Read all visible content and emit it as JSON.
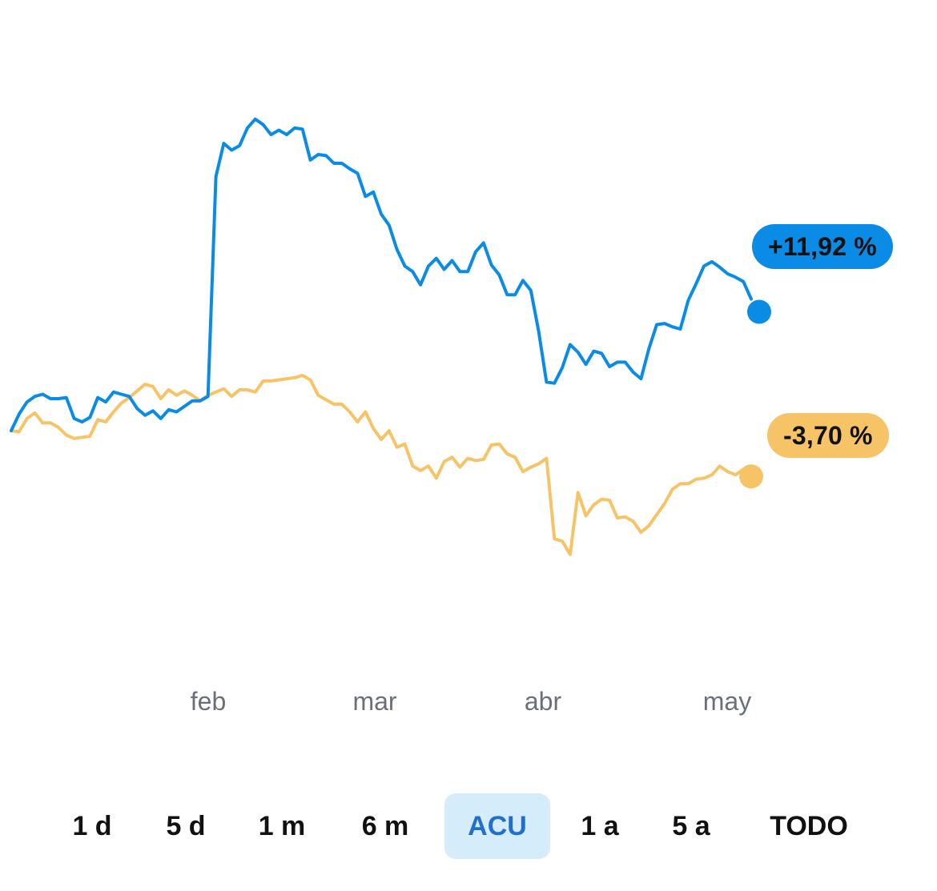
{
  "chart_data": {
    "type": "line",
    "x_ticks": [
      "feb",
      "mar",
      "abr",
      "may"
    ],
    "y_unit": "%",
    "grid": false,
    "series": [
      {
        "color": "#0a8be6",
        "end_label": "+11,92 %",
        "end_value": 11.92,
        "values": [
          0.0,
          1.5,
          2.6,
          3.1,
          3.3,
          2.9,
          2.9,
          3.0,
          1.1,
          0.8,
          1.2,
          3.0,
          2.6,
          3.5,
          3.3,
          3.1,
          2.0,
          1.4,
          1.8,
          1.1,
          1.9,
          1.7,
          2.2,
          2.7,
          2.7,
          3.1,
          23.0,
          26.0,
          25.4,
          25.8,
          27.4,
          28.2,
          27.7,
          26.8,
          27.2,
          26.8,
          27.4,
          27.3,
          24.5,
          25.0,
          24.9,
          24.2,
          24.2,
          23.7,
          23.3,
          21.2,
          21.6,
          19.6,
          18.6,
          16.4,
          14.9,
          14.4,
          13.2,
          14.9,
          15.6,
          14.6,
          15.4,
          14.4,
          14.4,
          16.2,
          17.0,
          15.0,
          14.1,
          12.3,
          12.3,
          13.6,
          12.7,
          9.0,
          4.4,
          4.3,
          5.7,
          7.8,
          7.1,
          6.0,
          7.2,
          7.0,
          5.8,
          6.2,
          6.2,
          5.3,
          4.7,
          7.4,
          9.6,
          9.7,
          9.4,
          9.2,
          11.8,
          13.3,
          14.9,
          15.3,
          14.8,
          14.2,
          13.9,
          13.5,
          11.92
        ]
      },
      {
        "color": "#f6c466",
        "end_label": "-3,70 %",
        "end_value": -3.7,
        "values": [
          0.0,
          -0.1,
          1.1,
          1.6,
          0.7,
          0.7,
          0.3,
          -0.4,
          -0.7,
          -0.6,
          -0.5,
          1.0,
          0.8,
          1.7,
          2.5,
          3.0,
          3.6,
          4.2,
          4.0,
          2.9,
          3.7,
          3.2,
          3.6,
          3.2,
          2.7,
          3.2,
          3.5,
          3.8,
          3.1,
          3.7,
          3.7,
          3.5,
          4.5,
          4.5,
          4.6,
          4.7,
          4.8,
          5.0,
          4.6,
          3.2,
          2.8,
          2.4,
          2.4,
          1.7,
          0.8,
          1.7,
          0.2,
          -0.8,
          0.0,
          -1.5,
          -1.2,
          -3.2,
          -3.6,
          -3.2,
          -4.3,
          -2.8,
          -2.4,
          -3.3,
          -2.5,
          -2.7,
          -2.6,
          -1.3,
          -1.2,
          -2.1,
          -2.4,
          -3.7,
          -3.3,
          -3.0,
          -2.5,
          -9.8,
          -10.0,
          -11.2,
          -5.6,
          -7.7,
          -6.7,
          -6.2,
          -6.3,
          -7.9,
          -7.8,
          -8.2,
          -9.2,
          -8.6,
          -7.6,
          -6.6,
          -5.3,
          -4.8,
          -4.8,
          -4.4,
          -4.3,
          -4.0,
          -3.2,
          -3.7,
          -4.0,
          -3.5,
          -3.7
        ]
      }
    ]
  },
  "range_selector": {
    "selected": "ACU",
    "options": [
      {
        "label": "1 d"
      },
      {
        "label": "5 d"
      },
      {
        "label": "1 m"
      },
      {
        "label": "6 m"
      },
      {
        "label": "ACU"
      },
      {
        "label": "1 a"
      },
      {
        "label": "5 a"
      },
      {
        "label": "TODO"
      }
    ]
  }
}
